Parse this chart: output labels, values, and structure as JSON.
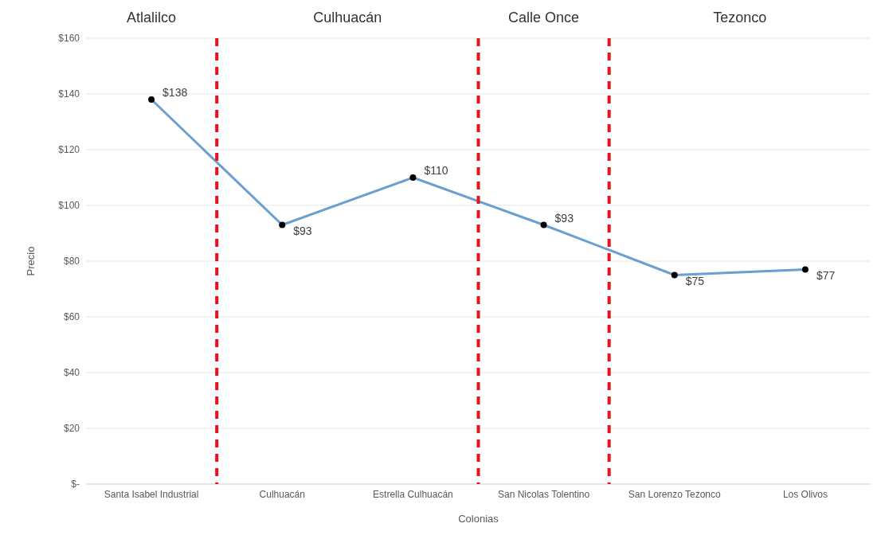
{
  "chart_data": {
    "type": "line",
    "xlabel": "Colonias",
    "ylabel": "Precio",
    "categories": [
      "Santa Isabel Industrial",
      "Culhuacán",
      "Estrella Culhuacán",
      "San Nicolas Tolentino",
      "San Lorenzo Tezonco",
      "Los Olivos"
    ],
    "series": [
      {
        "color": "#6a9fd0",
        "values": [
          138,
          93,
          110,
          93,
          75,
          77
        ],
        "value_labels": [
          "$138",
          "$93",
          "$110",
          "$93",
          "$75",
          "$77"
        ]
      }
    ],
    "ylim": [
      0,
      160
    ],
    "yticks": [
      {
        "value": 0,
        "label": "$-"
      },
      {
        "value": 20,
        "label": "$20"
      },
      {
        "value": 40,
        "label": "$40"
      },
      {
        "value": 60,
        "label": "$60"
      },
      {
        "value": 80,
        "label": "$80"
      },
      {
        "value": 100,
        "label": "$100"
      },
      {
        "value": 120,
        "label": "$120"
      },
      {
        "value": 140,
        "label": "$140"
      },
      {
        "value": 160,
        "label": "$160"
      }
    ],
    "grid": "y",
    "marker": "circle",
    "line_style": "solid",
    "annotations": [
      "Atlalilco",
      "Culhuacán",
      "Calle Once",
      "Tezonco"
    ]
  }
}
